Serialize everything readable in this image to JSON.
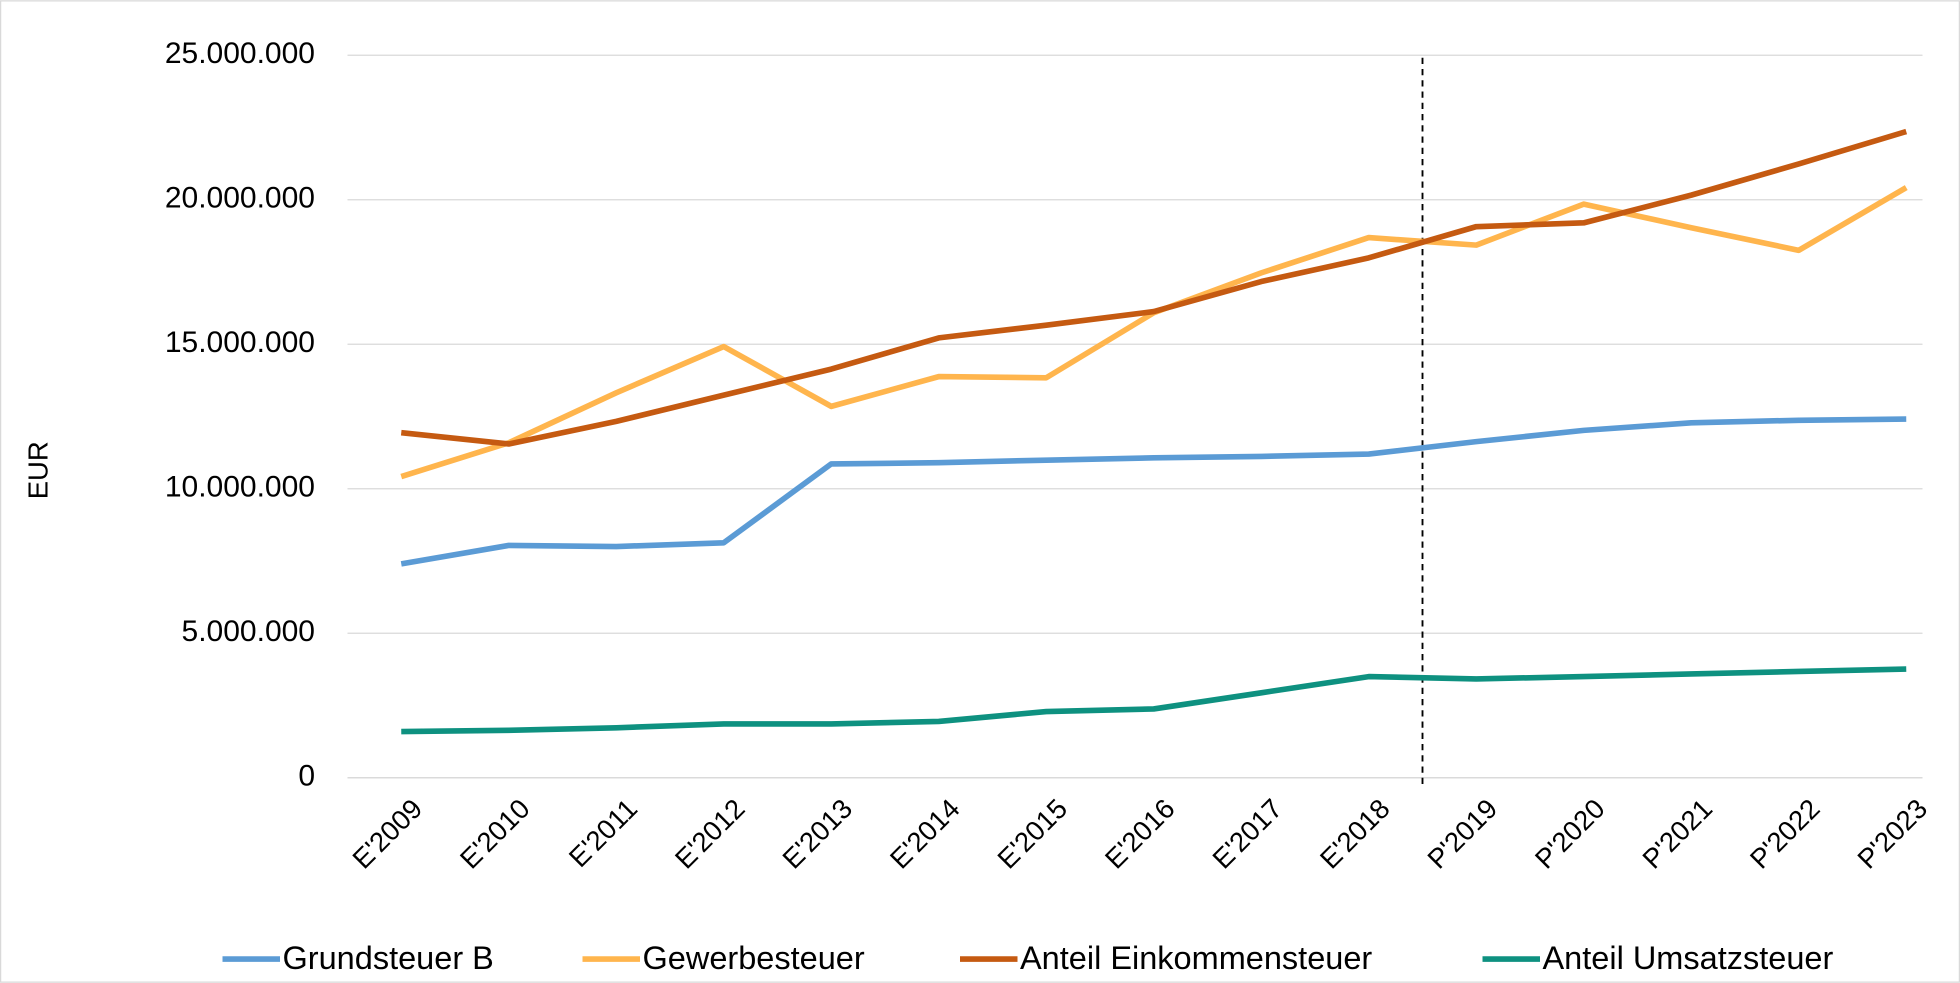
{
  "chart_data": {
    "type": "line",
    "y_label": "EUR",
    "categories": [
      "E'2009",
      "E'2010",
      "E'2011",
      "E'2012",
      "E'2013",
      "E'2014",
      "E'2015",
      "E'2016",
      "E'2017",
      "E'2018",
      "P'2019",
      "P'2020",
      "P'2021",
      "P'2022",
      "P'2023"
    ],
    "series": [
      {
        "name": "Grundsteuer B",
        "color": "#5b9bd5",
        "values": [
          7400000,
          8040000,
          8000000,
          8130000,
          10860000,
          10900000,
          10990000,
          11070000,
          11120000,
          11200000,
          11630000,
          12020000,
          12280000,
          12370000,
          12410000
        ]
      },
      {
        "name": "Gewerbesteuer",
        "color": "#ffb54d",
        "values": [
          10420000,
          11590000,
          13320000,
          14920000,
          12850000,
          13880000,
          13840000,
          16090000,
          17470000,
          18690000,
          18430000,
          19850000,
          19030000,
          18250000,
          20420000
        ]
      },
      {
        "name": "Anteil Einkommensteuer",
        "color": "#c55a11",
        "values": [
          11940000,
          11550000,
          12330000,
          13240000,
          14140000,
          15220000,
          15660000,
          16130000,
          17170000,
          17990000,
          19070000,
          19200000,
          20160000,
          21240000,
          22360000
        ]
      },
      {
        "name": "Anteil Umsatzsteuer",
        "color": "#0e9180",
        "values": [
          1600000,
          1640000,
          1730000,
          1860000,
          1860000,
          1950000,
          2290000,
          2380000,
          2940000,
          3500000,
          3420000,
          3500000,
          3590000,
          3680000,
          3760000
        ]
      }
    ],
    "ylim": [
      0,
      25000000
    ],
    "yticks": [
      0,
      {
        "value": 5000000,
        "label": "5.000.000"
      },
      {
        "value": 10000000,
        "label": "10.000.000"
      },
      {
        "value": 15000000,
        "label": "15.000.000"
      },
      {
        "value": 20000000,
        "label": "20.000.000"
      },
      {
        "value": 25000000,
        "label": "25.000.000"
      }
    ],
    "grid": true,
    "legend": "bottom"
  }
}
